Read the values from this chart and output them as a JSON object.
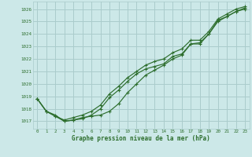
{
  "title": "Graphe pression niveau de la mer (hPa)",
  "bg_color": "#cce8e8",
  "grid_color": "#aacccc",
  "line_color": "#2d6e2d",
  "text_color": "#2d6e2d",
  "xlim": [
    -0.5,
    23.5
  ],
  "ylim": [
    1016.4,
    1026.6
  ],
  "yticks": [
    1017,
    1018,
    1019,
    1020,
    1021,
    1022,
    1023,
    1024,
    1025,
    1026
  ],
  "xticks": [
    0,
    1,
    2,
    3,
    4,
    5,
    6,
    7,
    8,
    9,
    10,
    11,
    12,
    13,
    14,
    15,
    16,
    17,
    18,
    19,
    20,
    21,
    22,
    23
  ],
  "series": [
    [
      1018.8,
      1017.8,
      1017.4,
      1017.0,
      1017.1,
      1017.2,
      1017.5,
      1018.0,
      1018.9,
      1019.5,
      1020.2,
      1020.8,
      1021.2,
      1021.4,
      1021.6,
      1022.2,
      1022.4,
      1023.2,
      1023.2,
      1024.0,
      1025.1,
      1025.4,
      1025.8,
      1026.0
    ],
    [
      1018.8,
      1017.8,
      1017.4,
      1017.1,
      1017.3,
      1017.5,
      1017.8,
      1018.3,
      1019.2,
      1019.8,
      1020.5,
      1021.0,
      1021.5,
      1021.8,
      1022.0,
      1022.5,
      1022.8,
      1023.5,
      1023.5,
      1024.2,
      1025.2,
      1025.6,
      1026.0,
      1026.2
    ],
    [
      1018.8,
      1017.8,
      1017.5,
      1017.0,
      1017.1,
      1017.3,
      1017.4,
      1017.5,
      1017.8,
      1018.4,
      1019.3,
      1020.0,
      1020.7,
      1021.1,
      1021.5,
      1022.0,
      1022.3,
      1023.2,
      1023.3,
      1024.0,
      1025.0,
      1025.4,
      1025.8,
      1026.1
    ]
  ]
}
